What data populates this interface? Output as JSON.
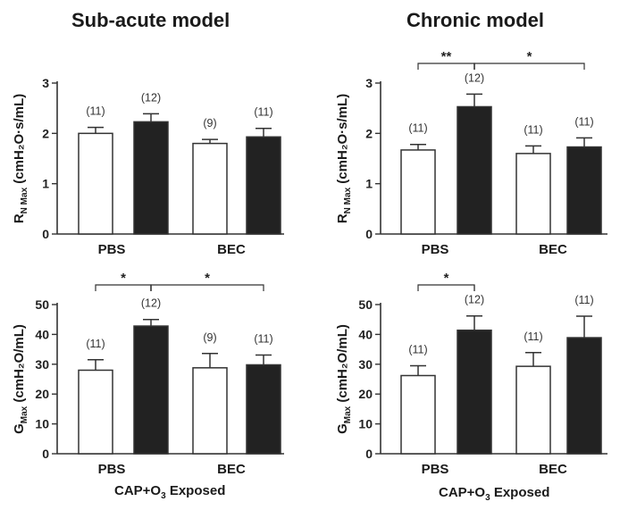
{
  "headings": {
    "left": "Sub-acute model",
    "right": "Chronic model"
  },
  "x_caption": {
    "main": "CAP+O",
    "sub": "3",
    "tail": " Exposed"
  },
  "colors": {
    "open_bar": "#ffffff",
    "filled_bar": "#222222",
    "axis": "#333333"
  },
  "chart_data": [
    {
      "id": "subacute-rn",
      "type": "bar",
      "title": "Sub-acute model",
      "ylabel": {
        "main": "R",
        "sub": "N Max",
        "unit": " (cmH₂O·s/mL)"
      },
      "ylim": [
        0,
        3
      ],
      "yticks": [
        "0",
        "1",
        "2",
        "3"
      ],
      "categories": [
        "PBS",
        "BEC"
      ],
      "bars": [
        {
          "group": "PBS",
          "fill": "open",
          "value": 2.0,
          "err": 0.12,
          "n": "(11)"
        },
        {
          "group": "PBS",
          "fill": "filled",
          "value": 2.23,
          "err": 0.16,
          "n": "(12)"
        },
        {
          "group": "BEC",
          "fill": "open",
          "value": 1.8,
          "err": 0.08,
          "n": "(9)"
        },
        {
          "group": "BEC",
          "fill": "filled",
          "value": 1.93,
          "err": 0.17,
          "n": "(11)"
        }
      ],
      "significance": []
    },
    {
      "id": "chronic-rn",
      "type": "bar",
      "title": "Chronic model",
      "ylabel": {
        "main": "R",
        "sub": "N Max",
        "unit": " (cmH₂O·s/mL)"
      },
      "ylim": [
        0,
        3
      ],
      "yticks": [
        "0",
        "1",
        "2",
        "3"
      ],
      "categories": [
        "PBS",
        "BEC"
      ],
      "bars": [
        {
          "group": "PBS",
          "fill": "open",
          "value": 1.67,
          "err": 0.11,
          "n": "(11)"
        },
        {
          "group": "PBS",
          "fill": "filled",
          "value": 2.53,
          "err": 0.25,
          "n": "(12)"
        },
        {
          "group": "BEC",
          "fill": "open",
          "value": 1.6,
          "err": 0.15,
          "n": "(11)"
        },
        {
          "group": "BEC",
          "fill": "filled",
          "value": 1.73,
          "err": 0.18,
          "n": "(11)"
        }
      ],
      "significance": [
        {
          "from": 0,
          "to": 1,
          "label": "**"
        },
        {
          "from": 1,
          "to": 3,
          "label": "*"
        }
      ]
    },
    {
      "id": "subacute-g",
      "type": "bar",
      "title": "Sub-acute model",
      "ylabel": {
        "main": "G",
        "sub": "Max",
        "unit": " (cmH₂O/mL)"
      },
      "ylim": [
        0,
        50
      ],
      "yticks": [
        "0",
        "10",
        "20",
        "30",
        "40",
        "50"
      ],
      "categories": [
        "PBS",
        "BEC"
      ],
      "bars": [
        {
          "group": "PBS",
          "fill": "open",
          "value": 28,
          "err": 3.5,
          "n": "(11)"
        },
        {
          "group": "PBS",
          "fill": "filled",
          "value": 42.8,
          "err": 2.2,
          "n": "(12)"
        },
        {
          "group": "BEC",
          "fill": "open",
          "value": 28.8,
          "err": 4.8,
          "n": "(9)"
        },
        {
          "group": "BEC",
          "fill": "filled",
          "value": 29.8,
          "err": 3.3,
          "n": "(11)"
        }
      ],
      "significance": [
        {
          "from": 0,
          "to": 1,
          "label": "*"
        },
        {
          "from": 1,
          "to": 3,
          "label": "*"
        }
      ]
    },
    {
      "id": "chronic-g",
      "type": "bar",
      "title": "Chronic model",
      "ylabel": {
        "main": "G",
        "sub": "Max",
        "unit": " (cmH₂O/mL)"
      },
      "ylim": [
        0,
        50
      ],
      "yticks": [
        "0",
        "10",
        "20",
        "30",
        "40",
        "50"
      ],
      "categories": [
        "PBS",
        "BEC"
      ],
      "bars": [
        {
          "group": "PBS",
          "fill": "open",
          "value": 26.2,
          "err": 3.3,
          "n": "(11)"
        },
        {
          "group": "PBS",
          "fill": "filled",
          "value": 41.4,
          "err": 4.8,
          "n": "(12)"
        },
        {
          "group": "BEC",
          "fill": "open",
          "value": 29.3,
          "err": 4.6,
          "n": "(11)"
        },
        {
          "group": "BEC",
          "fill": "filled",
          "value": 38.9,
          "err": 7.2,
          "n": "(11)"
        }
      ],
      "significance": [
        {
          "from": 0,
          "to": 1,
          "label": "*"
        }
      ]
    }
  ]
}
